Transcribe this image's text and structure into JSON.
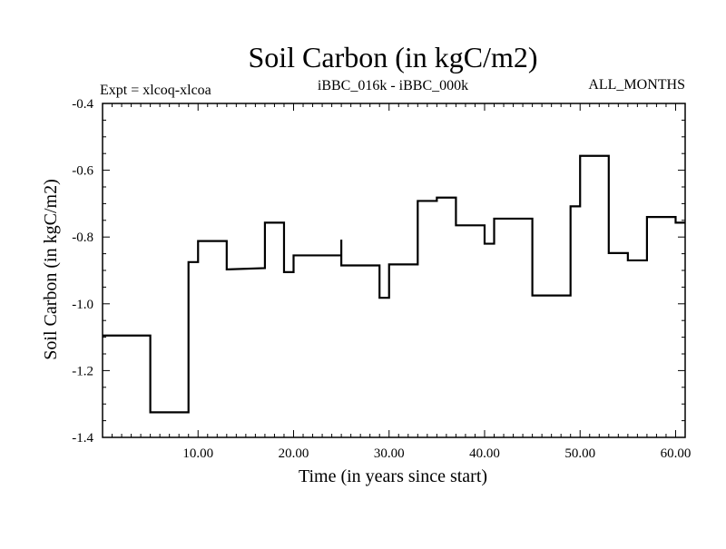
{
  "chart_data": {
    "type": "line",
    "step": true,
    "title": "Soil Carbon (in kgC/m2)",
    "subtitle_left": "Expt = xlcoq-xlcoa",
    "subtitle_center": "iBBC_016k - iBBC_000k",
    "subtitle_right": "ALL_MONTHS",
    "xlabel": "Time (in years since start)",
    "ylabel": "Soil Carbon (in kgC/m2)",
    "xlim": [
      0,
      61
    ],
    "ylim": [
      -1.4,
      -0.4
    ],
    "x_ticks": [
      10,
      20,
      30,
      40,
      50,
      60
    ],
    "x_tick_labels": [
      "10.00",
      "20.00",
      "30.00",
      "40.00",
      "50.00",
      "60.00"
    ],
    "y_ticks": [
      -1.4,
      -1.2,
      -1.0,
      -0.8,
      -0.6,
      -0.4
    ],
    "y_tick_labels": [
      "-1.4",
      "-1.2",
      "-1.0",
      "-0.8",
      "-0.6",
      "-0.4"
    ],
    "series": [
      {
        "x": [
          0,
          5,
          5,
          9,
          9,
          10,
          10,
          13,
          13,
          17,
          17,
          19,
          19,
          20,
          20,
          25,
          25,
          25,
          25,
          29,
          29,
          30,
          30,
          33,
          33,
          35,
          35,
          37,
          37,
          40,
          40,
          41,
          41,
          45,
          45,
          49,
          49,
          50,
          50,
          53,
          53,
          55,
          55,
          57,
          57,
          60,
          60,
          61
        ],
        "y": [
          -1.095,
          -1.095,
          -1.325,
          -1.325,
          -0.875,
          -0.875,
          -0.812,
          -0.812,
          -0.897,
          -0.893,
          -0.757,
          -0.757,
          -0.905,
          -0.905,
          -0.855,
          -0.855,
          -0.808,
          -0.808,
          -0.885,
          -0.885,
          -0.982,
          -0.982,
          -0.882,
          -0.882,
          -0.692,
          -0.692,
          -0.682,
          -0.682,
          -0.765,
          -0.765,
          -0.82,
          -0.82,
          -0.745,
          -0.745,
          -0.975,
          -0.975,
          -0.708,
          -0.708,
          -0.557,
          -0.557,
          -0.848,
          -0.848,
          -0.87,
          -0.87,
          -0.74,
          -0.74,
          -0.757,
          -0.757
        ]
      }
    ]
  }
}
